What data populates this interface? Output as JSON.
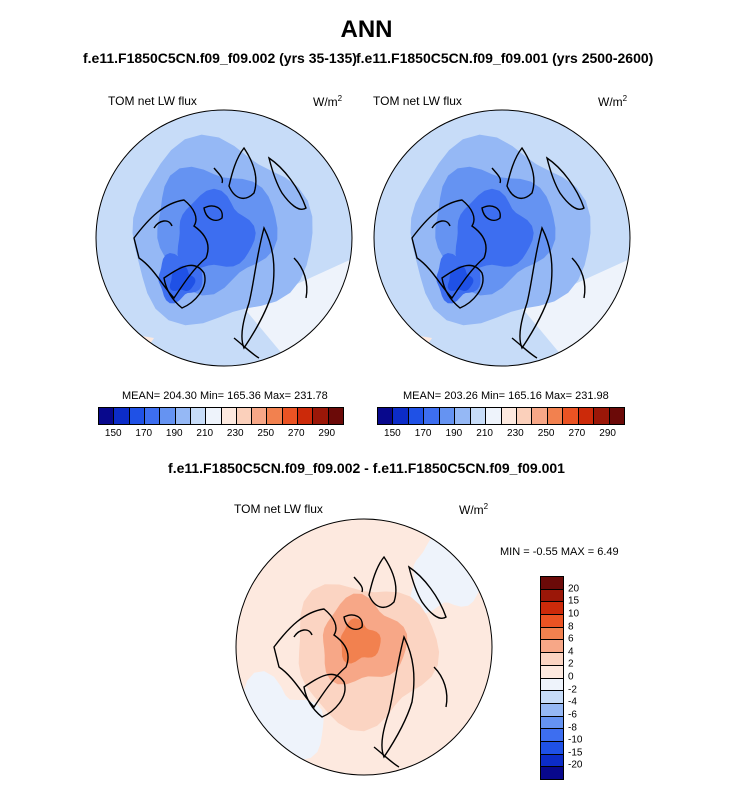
{
  "title": "ANN",
  "left_subtitle": "f.e11.F1850C5CN.f09_f09.002 (yrs 35-135)",
  "right_subtitle": "f.e11.F1850C5CN.f09_f09.001 (yrs 2500-2600)",
  "panel_label": "TOM net LW flux",
  "units_base": "W/m",
  "units_exp": "2",
  "left_stats": "MEAN= 204.30  Min= 165.36  Max= 231.78",
  "right_stats": "MEAN= 203.26  Min= 165.16  Max= 231.98",
  "diff_title": "f.e11.F1850C5CN.f09_f09.002 - f.e11.F1850C5CN.f09_f09.001",
  "diff_stats": "MIN =  -0.55 MAX =   6.49",
  "colors": {
    "abs_scale": [
      "#08088c",
      "#0c2cc8",
      "#1f51e6",
      "#3d6ef0",
      "#6593f2",
      "#95b8f5",
      "#c7dcf8",
      "#eef3fb",
      "#fde9df",
      "#fbd0bb",
      "#f7a787",
      "#f2814f",
      "#eb5323",
      "#cc2a0a",
      "#9b1708",
      "#6b0a08"
    ],
    "diff_scale": [
      "#6b0a08",
      "#9b1708",
      "#cc2a0a",
      "#eb5323",
      "#f2814f",
      "#f7a787",
      "#fbd4c2",
      "#fde9df",
      "#eef3fb",
      "#c7dcf8",
      "#95b8f5",
      "#6593f2",
      "#3d6ef0",
      "#1f51e6",
      "#0c2cc8",
      "#08088c"
    ]
  },
  "chart_data": [
    {
      "type": "heatmap",
      "projection": "north polar stereographic",
      "title": "TOM net LW flux",
      "units": "W/m2",
      "mean": 204.3,
      "min": 165.36,
      "max": 231.78,
      "colorbar_ticks": [
        "150",
        "170",
        "190",
        "210",
        "230",
        "250",
        "270",
        "290"
      ]
    },
    {
      "type": "heatmap",
      "projection": "north polar stereographic",
      "title": "TOM net LW flux",
      "units": "W/m2",
      "mean": 203.26,
      "min": 165.16,
      "max": 231.98,
      "colorbar_ticks": [
        "150",
        "170",
        "190",
        "210",
        "230",
        "250",
        "270",
        "290"
      ]
    },
    {
      "type": "heatmap",
      "projection": "north polar stereographic",
      "title": "TOM net LW flux",
      "units": "W/m2",
      "min": -0.55,
      "max": 6.49,
      "colorbar_ticks": [
        "20",
        "15",
        "10",
        "8",
        "6",
        "4",
        "2",
        "0",
        "-2",
        "-4",
        "-6",
        "-8",
        "-10",
        "-15",
        "-20"
      ]
    }
  ]
}
